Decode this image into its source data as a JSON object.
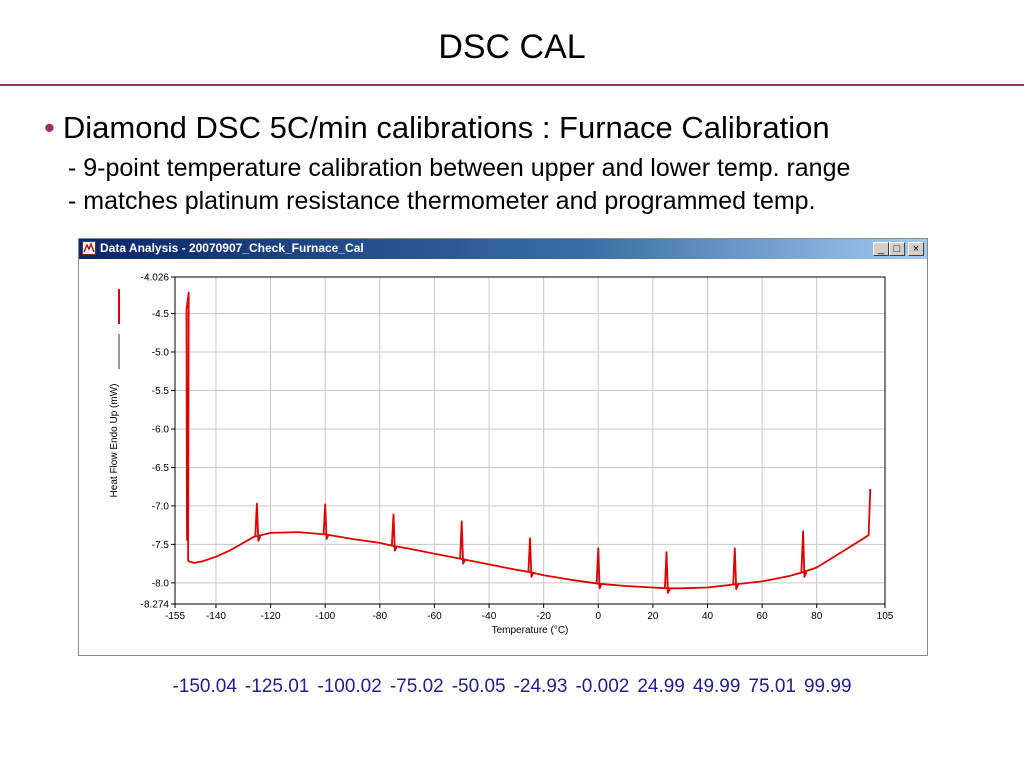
{
  "slide": {
    "title": "DSC CAL",
    "bullet": "Diamond DSC 5C/min calibrations : Furnace Calibration",
    "sub_lines": [
      "- 9-point temperature calibration between upper and lower temp. range",
      "- matches platinum resistance thermometer and programmed temp."
    ],
    "calibration_values": [
      "-150.04",
      "-125.01",
      "-100.02",
      "-75.02",
      "-50.05",
      "-24.93",
      "-0.002",
      "24.99",
      "49.99",
      "75.01",
      "99.99"
    ]
  },
  "window": {
    "title": "Data Analysis - 20070907_Check_Furnace_Cal",
    "buttons": {
      "minimize": "_",
      "maximize": "□",
      "close": "×"
    }
  },
  "colors": {
    "series": "#e00000",
    "title_rule": "#993366",
    "cal_values": "#1f1f8f"
  },
  "chart_data": {
    "type": "line",
    "title": "",
    "xlabel": "Temperature (°C)",
    "ylabel": "Heat Flow Endo Up (mW)",
    "xlim": [
      -155,
      105
    ],
    "ylim": [
      -8.274,
      -4.026
    ],
    "x_ticks": [
      -155,
      -140,
      -120,
      -100,
      -80,
      -60,
      -40,
      -20,
      0,
      20,
      40,
      60,
      80,
      105
    ],
    "x_tick_labels": [
      "-155",
      "-140",
      "-120",
      "-100",
      "-80",
      "-60",
      "-40",
      "-20",
      "0",
      "20",
      "40",
      "60",
      "80",
      "105"
    ],
    "y_ticks": [
      -4.026,
      -4.5,
      -5.0,
      -5.5,
      -6.0,
      -6.5,
      -7.0,
      -7.5,
      -8.0,
      -8.274
    ],
    "y_tick_labels": [
      "-4.026",
      "-4.5",
      "-5.0",
      "-5.5",
      "-6.0",
      "-6.5",
      "-7.0",
      "-7.5",
      "-8.0",
      "-8.274"
    ],
    "grid": true,
    "legend": "left-vertical",
    "series": [
      {
        "color": "#e00000",
        "baseline": [
          [
            -150.0,
            -7.72
          ],
          [
            -148.0,
            -7.74
          ],
          [
            -145.0,
            -7.72
          ],
          [
            -140.0,
            -7.66
          ],
          [
            -135.0,
            -7.58
          ],
          [
            -130.0,
            -7.48
          ],
          [
            -126.0,
            -7.4
          ],
          [
            -120.0,
            -7.35
          ],
          [
            -110.0,
            -7.34
          ],
          [
            -100.0,
            -7.37
          ],
          [
            -90.0,
            -7.43
          ],
          [
            -80.0,
            -7.48
          ],
          [
            -75.0,
            -7.52
          ],
          [
            -70.0,
            -7.55
          ],
          [
            -60.0,
            -7.62
          ],
          [
            -50.0,
            -7.69
          ],
          [
            -40.0,
            -7.76
          ],
          [
            -30.0,
            -7.83
          ],
          [
            -25.0,
            -7.86
          ],
          [
            -20.0,
            -7.9
          ],
          [
            -10.0,
            -7.96
          ],
          [
            0.0,
            -8.01
          ],
          [
            10.0,
            -8.04
          ],
          [
            20.0,
            -8.06
          ],
          [
            25.0,
            -8.07
          ],
          [
            30.0,
            -8.07
          ],
          [
            40.0,
            -8.06
          ],
          [
            50.0,
            -8.02
          ],
          [
            60.0,
            -7.98
          ],
          [
            70.0,
            -7.91
          ],
          [
            75.0,
            -7.86
          ],
          [
            80.0,
            -7.8
          ],
          [
            90.0,
            -7.58
          ],
          [
            99.0,
            -7.38
          ]
        ],
        "peaks": [
          {
            "x": -125.0,
            "y": -6.97
          },
          {
            "x": -100.0,
            "y": -6.98
          },
          {
            "x": -75.0,
            "y": -7.11
          },
          {
            "x": -50.0,
            "y": -7.2
          },
          {
            "x": -25.0,
            "y": -7.42
          },
          {
            "x": 0.0,
            "y": -7.55
          },
          {
            "x": 25.0,
            "y": -7.6
          },
          {
            "x": 50.0,
            "y": -7.55
          },
          {
            "x": 75.0,
            "y": -7.33
          }
        ],
        "start_transient": [
          [
            -150.6,
            -7.45
          ],
          [
            -150.8,
            -4.45
          ],
          [
            -150.0,
            -4.23
          ],
          [
            -150.2,
            -7.7
          ]
        ],
        "end_rise": [
          [
            99.0,
            -7.38
          ],
          [
            99.6,
            -6.78
          ]
        ]
      }
    ]
  }
}
